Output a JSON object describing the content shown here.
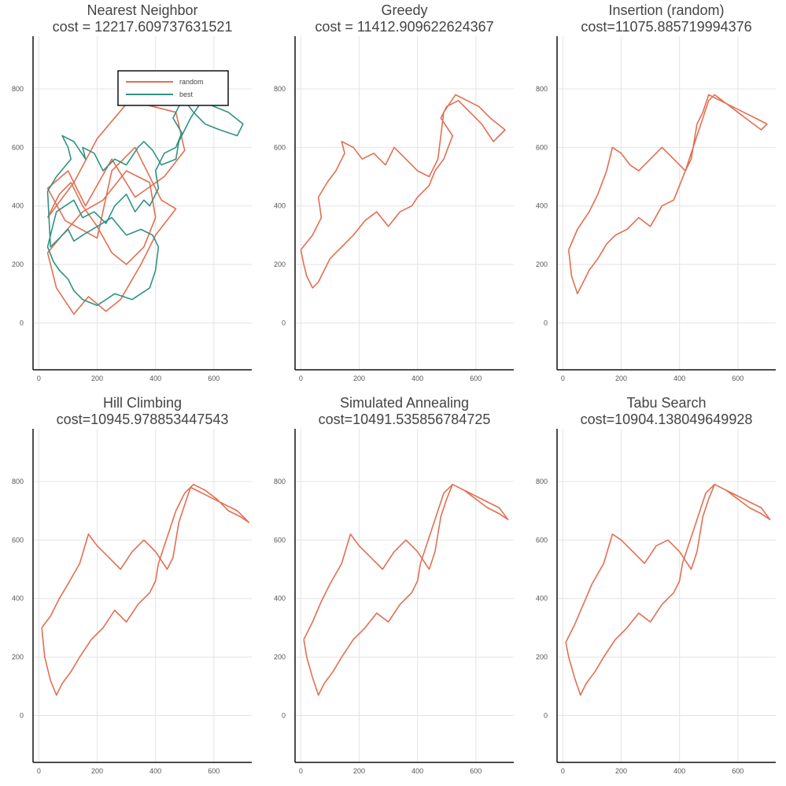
{
  "colors": {
    "random": "#e26f52",
    "best": "#2f9384"
  },
  "chart_data": [
    {
      "type": "line",
      "title": "Nearest Neighbor",
      "subtitle": "cost = 12217.609737631521",
      "xlim": [
        -20,
        730
      ],
      "ylim": [
        -160,
        980
      ],
      "xticks": [
        0,
        200,
        400,
        600
      ],
      "yticks": [
        0,
        200,
        400,
        600,
        800
      ],
      "grid": true,
      "legend": {
        "placement": "top-right",
        "entries": [
          "random",
          "best"
        ]
      },
      "series": [
        {
          "name": "random",
          "x": [
            30,
            120,
            200,
            310,
            470,
            500,
            430,
            330,
            250,
            160,
            100,
            30,
            90,
            200,
            250,
            330,
            420,
            470,
            400,
            350,
            280,
            230,
            170,
            120,
            60,
            30,
            80,
            150,
            220,
            300,
            380,
            400,
            360,
            300,
            250,
            200,
            150,
            110,
            70,
            40,
            30
          ],
          "y": [
            360,
            480,
            630,
            760,
            720,
            590,
            500,
            430,
            560,
            400,
            520,
            460,
            350,
            290,
            520,
            600,
            420,
            390,
            300,
            200,
            80,
            40,
            90,
            30,
            120,
            240,
            300,
            380,
            420,
            520,
            480,
            360,
            260,
            200,
            240,
            330,
            400,
            480,
            440,
            380,
            360
          ]
        },
        {
          "name": "best",
          "x": [
            30,
            60,
            110,
            100,
            80,
            120,
            160,
            150,
            190,
            220,
            260,
            300,
            340,
            360,
            390,
            420,
            470,
            480,
            520,
            560,
            600,
            650,
            700,
            680,
            620,
            570,
            530,
            500,
            480,
            460,
            490,
            470,
            430,
            400,
            410,
            380,
            360,
            330,
            300,
            260,
            230,
            190,
            150,
            120,
            90,
            60,
            50,
            40,
            30,
            50,
            70,
            100,
            120,
            150,
            200,
            260,
            320,
            380,
            400,
            410,
            390,
            350,
            300,
            250,
            200,
            150,
            120,
            100,
            80,
            60,
            40,
            30
          ],
          "y": [
            450,
            500,
            560,
            600,
            640,
            620,
            560,
            600,
            580,
            520,
            560,
            540,
            600,
            620,
            590,
            540,
            560,
            620,
            700,
            760,
            740,
            720,
            680,
            640,
            660,
            680,
            720,
            760,
            740,
            700,
            650,
            600,
            580,
            520,
            460,
            400,
            420,
            380,
            440,
            400,
            340,
            380,
            360,
            420,
            400,
            380,
            340,
            300,
            260,
            210,
            180,
            150,
            110,
            80,
            60,
            100,
            80,
            120,
            180,
            260,
            300,
            320,
            300,
            360,
            330,
            300,
            280,
            320,
            300,
            280,
            260,
            450
          ]
        }
      ]
    },
    {
      "type": "line",
      "title": "Greedy",
      "subtitle": "cost = 11412.909622624367",
      "xlim": [
        -20,
        730
      ],
      "ylim": [
        -160,
        980
      ],
      "xticks": [
        0,
        200,
        400,
        600
      ],
      "yticks": [
        0,
        200,
        400,
        600,
        800
      ],
      "grid": true,
      "series": [
        {
          "name": "random",
          "x": [
            0,
            40,
            70,
            60,
            90,
            120,
            150,
            140,
            180,
            210,
            250,
            290,
            320,
            360,
            400,
            440,
            470,
            490,
            530,
            570,
            610,
            650,
            700,
            660,
            620,
            580,
            540,
            500,
            480,
            520,
            490,
            460,
            440,
            400,
            380,
            340,
            300,
            260,
            220,
            180,
            140,
            100,
            80,
            60,
            40,
            20,
            10,
            0
          ],
          "y": [
            250,
            300,
            360,
            430,
            480,
            520,
            580,
            620,
            600,
            560,
            580,
            540,
            600,
            560,
            520,
            500,
            560,
            720,
            780,
            760,
            740,
            700,
            660,
            620,
            680,
            720,
            760,
            740,
            700,
            640,
            560,
            520,
            470,
            430,
            400,
            380,
            330,
            380,
            350,
            300,
            260,
            220,
            180,
            140,
            120,
            160,
            200,
            250
          ]
        }
      ]
    },
    {
      "type": "line",
      "title": "Insertion (random)",
      "subtitle": "cost=11075.885719994376",
      "xlim": [
        -20,
        730
      ],
      "ylim": [
        -160,
        980
      ],
      "xticks": [
        0,
        200,
        400,
        600
      ],
      "yticks": [
        0,
        200,
        400,
        600,
        800
      ],
      "grid": true,
      "series": [
        {
          "name": "random",
          "x": [
            20,
            50,
            90,
            120,
            150,
            170,
            200,
            230,
            260,
            300,
            340,
            380,
            420,
            440,
            460,
            480,
            500,
            540,
            580,
            620,
            660,
            700,
            680,
            640,
            600,
            560,
            520,
            500,
            480,
            460,
            440,
            420,
            400,
            380,
            340,
            300,
            260,
            220,
            180,
            150,
            120,
            90,
            70,
            50,
            30,
            20
          ],
          "y": [
            250,
            320,
            380,
            440,
            520,
            600,
            580,
            540,
            520,
            560,
            600,
            560,
            520,
            560,
            680,
            720,
            780,
            760,
            740,
            720,
            700,
            680,
            660,
            690,
            720,
            750,
            780,
            760,
            700,
            640,
            580,
            520,
            470,
            420,
            400,
            330,
            360,
            320,
            300,
            270,
            220,
            180,
            140,
            100,
            160,
            250
          ]
        }
      ]
    },
    {
      "type": "line",
      "title": "Hill Climbing",
      "subtitle": "cost=10945.978853447543",
      "xlim": [
        -20,
        730
      ],
      "ylim": [
        -160,
        980
      ],
      "xticks": [
        0,
        200,
        400,
        600
      ],
      "yticks": [
        0,
        200,
        400,
        600,
        800
      ],
      "grid": true,
      "series": [
        {
          "name": "random",
          "x": [
            10,
            40,
            70,
            100,
            140,
            170,
            200,
            240,
            280,
            320,
            360,
            400,
            440,
            460,
            480,
            500,
            520,
            560,
            600,
            640,
            680,
            720,
            690,
            650,
            610,
            570,
            530,
            500,
            470,
            450,
            430,
            410,
            400,
            380,
            340,
            300,
            260,
            220,
            180,
            140,
            110,
            80,
            60,
            40,
            20,
            10
          ],
          "y": [
            300,
            340,
            400,
            450,
            520,
            620,
            580,
            540,
            500,
            560,
            600,
            560,
            500,
            540,
            660,
            720,
            780,
            760,
            740,
            720,
            700,
            660,
            680,
            700,
            740,
            770,
            790,
            760,
            700,
            640,
            580,
            520,
            460,
            420,
            380,
            320,
            360,
            300,
            260,
            200,
            150,
            110,
            70,
            120,
            200,
            300
          ]
        }
      ]
    },
    {
      "type": "line",
      "title": "Simulated Annealing",
      "subtitle": "cost=10491.535856784725",
      "xlim": [
        -20,
        730
      ],
      "ylim": [
        -160,
        980
      ],
      "xticks": [
        0,
        200,
        400,
        600
      ],
      "yticks": [
        0,
        200,
        400,
        600,
        800
      ],
      "grid": true,
      "series": [
        {
          "name": "random",
          "x": [
            10,
            40,
            70,
            100,
            140,
            170,
            200,
            240,
            280,
            320,
            360,
            400,
            440,
            460,
            480,
            500,
            520,
            560,
            600,
            640,
            680,
            710,
            680,
            640,
            600,
            560,
            520,
            490,
            470,
            450,
            430,
            410,
            400,
            380,
            340,
            300,
            260,
            220,
            180,
            140,
            110,
            80,
            60,
            40,
            20,
            10
          ],
          "y": [
            260,
            320,
            390,
            450,
            520,
            620,
            580,
            540,
            500,
            560,
            600,
            560,
            500,
            560,
            680,
            740,
            790,
            770,
            750,
            730,
            710,
            670,
            690,
            710,
            740,
            770,
            790,
            760,
            700,
            640,
            580,
            520,
            460,
            420,
            380,
            320,
            350,
            300,
            260,
            200,
            150,
            110,
            70,
            130,
            200,
            260
          ]
        }
      ]
    },
    {
      "type": "line",
      "title": "Tabu Search",
      "subtitle": "cost=10904.138049649928",
      "xlim": [
        -20,
        730
      ],
      "ylim": [
        -160,
        980
      ],
      "xticks": [
        0,
        200,
        400,
        600
      ],
      "yticks": [
        0,
        200,
        400,
        600,
        800
      ],
      "grid": true,
      "series": [
        {
          "name": "random",
          "x": [
            10,
            40,
            70,
            100,
            140,
            170,
            200,
            240,
            280,
            320,
            360,
            400,
            440,
            460,
            480,
            500,
            520,
            560,
            600,
            640,
            680,
            710,
            680,
            640,
            600,
            560,
            520,
            490,
            470,
            450,
            430,
            410,
            400,
            380,
            340,
            300,
            260,
            220,
            180,
            140,
            110,
            80,
            60,
            40,
            20,
            10
          ],
          "y": [
            250,
            310,
            380,
            450,
            520,
            620,
            600,
            560,
            520,
            580,
            600,
            560,
            500,
            560,
            680,
            740,
            790,
            770,
            750,
            730,
            710,
            670,
            690,
            710,
            740,
            770,
            790,
            760,
            700,
            640,
            580,
            520,
            460,
            420,
            380,
            320,
            350,
            300,
            260,
            200,
            150,
            110,
            70,
            130,
            200,
            250
          ]
        }
      ]
    }
  ]
}
